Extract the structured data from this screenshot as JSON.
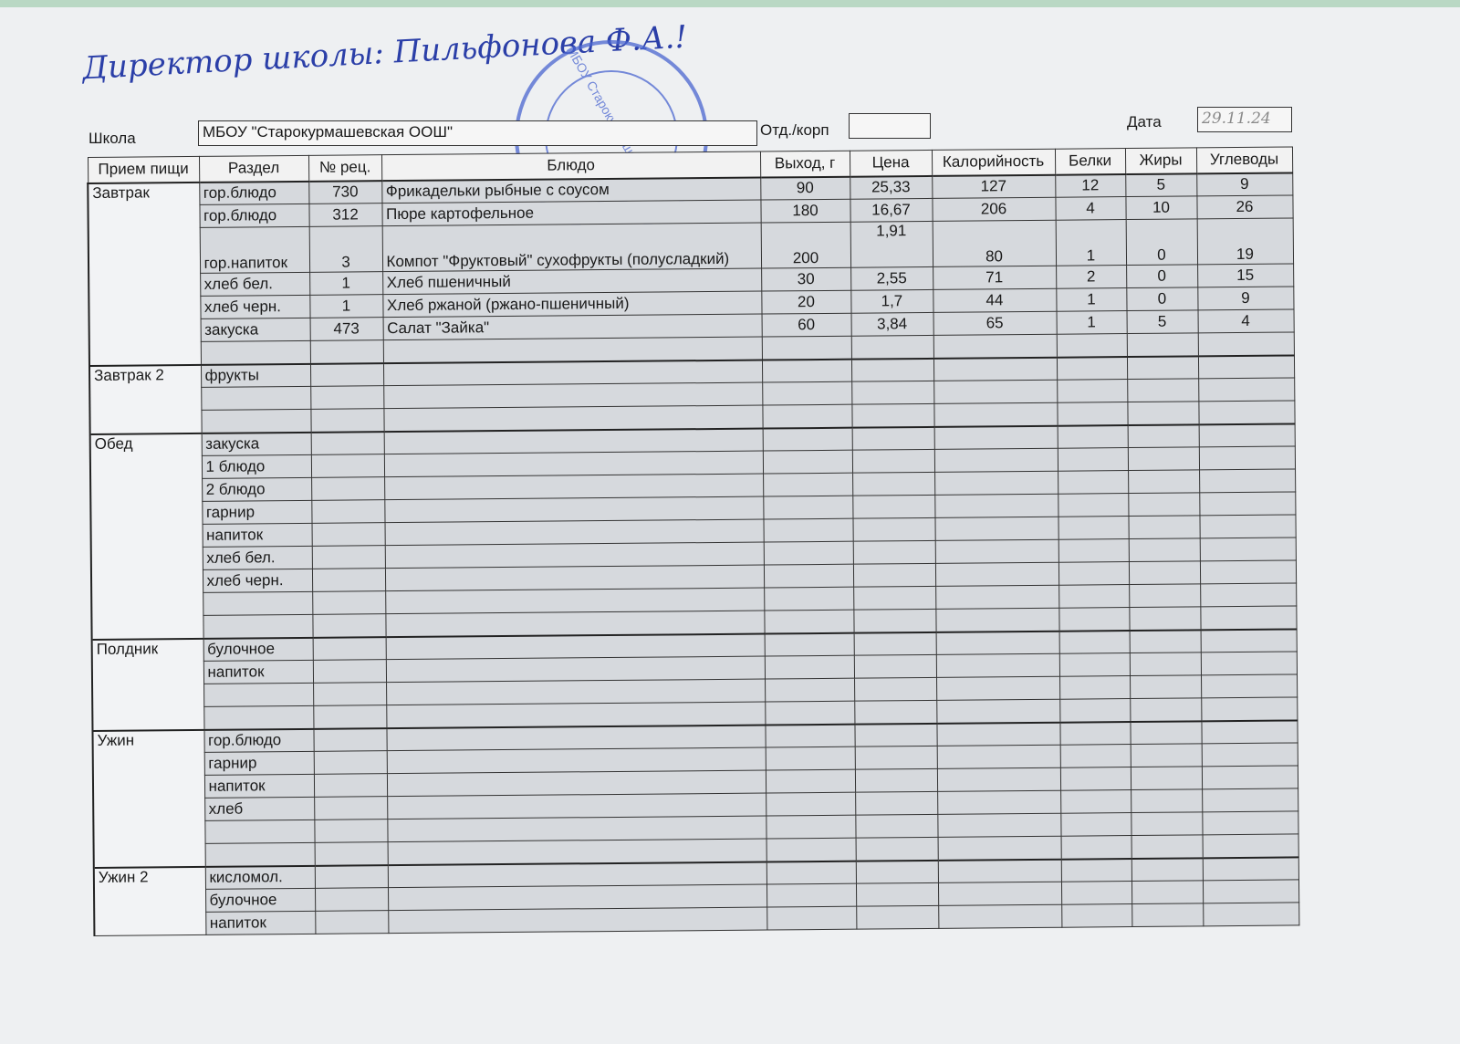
{
  "signature_line": {
    "text": "Директор школы: Пильфонова Ф.А.!",
    "stamp_text": "МБОУ Старокурмашевская ООШ",
    "ink_color": "#2b3fa8"
  },
  "header": {
    "school_label": "Школа",
    "school_value": "МБОУ \"Старокурмашевская ООШ\"",
    "branch_label": "Отд./корп",
    "branch_value": "",
    "date_label": "Дата",
    "date_value": "29.11.24"
  },
  "columns": [
    "Прием пищи",
    "Раздел",
    "№ рец.",
    "Блюдо",
    "Выход, г",
    "Цена",
    "Калорийность",
    "Белки",
    "Жиры",
    "Углеводы"
  ],
  "sections": [
    {
      "meal": "Завтрак",
      "rows": [
        [
          "гор.блюдо",
          "730",
          "Фрикадельки рыбные с соусом",
          "90",
          "25,33",
          "127",
          "12",
          "5",
          "9"
        ],
        [
          "гор.блюдо",
          "312",
          "Пюре картофельное",
          "180",
          "16,67",
          "206",
          "4",
          "10",
          "26"
        ],
        [
          "гор.напиток",
          "3",
          "Компот \"Фруктовый\" сухофрукты (полусладкий)",
          "200",
          "1,91",
          "80",
          "1",
          "0",
          "19"
        ],
        [
          "хлеб бел.",
          "1",
          "Хлеб пшеничный",
          "30",
          "2,55",
          "71",
          "2",
          "0",
          "15"
        ],
        [
          "хлеб черн.",
          "1",
          "Хлеб ржаной (ржано-пшеничный)",
          "20",
          "1,7",
          "44",
          "1",
          "0",
          "9"
        ],
        [
          "закуска",
          "473",
          "Салат \"Зайка\"",
          "60",
          "3,84",
          "65",
          "1",
          "5",
          "4"
        ],
        [
          "",
          "",
          "",
          "",
          "",
          "",
          "",
          "",
          ""
        ]
      ]
    },
    {
      "meal": "Завтрак 2",
      "rows": [
        [
          "фрукты",
          "",
          "",
          "",
          "",
          "",
          "",
          "",
          ""
        ],
        [
          "",
          "",
          "",
          "",
          "",
          "",
          "",
          "",
          ""
        ],
        [
          "",
          "",
          "",
          "",
          "",
          "",
          "",
          "",
          ""
        ]
      ]
    },
    {
      "meal": "Обед",
      "rows": [
        [
          "закуска",
          "",
          "",
          "",
          "",
          "",
          "",
          "",
          ""
        ],
        [
          "1 блюдо",
          "",
          "",
          "",
          "",
          "",
          "",
          "",
          ""
        ],
        [
          "2 блюдо",
          "",
          "",
          "",
          "",
          "",
          "",
          "",
          ""
        ],
        [
          "гарнир",
          "",
          "",
          "",
          "",
          "",
          "",
          "",
          ""
        ],
        [
          "напиток",
          "",
          "",
          "",
          "",
          "",
          "",
          "",
          ""
        ],
        [
          "хлеб бел.",
          "",
          "",
          "",
          "",
          "",
          "",
          "",
          ""
        ],
        [
          "хлеб черн.",
          "",
          "",
          "",
          "",
          "",
          "",
          "",
          ""
        ],
        [
          "",
          "",
          "",
          "",
          "",
          "",
          "",
          "",
          ""
        ],
        [
          "",
          "",
          "",
          "",
          "",
          "",
          "",
          "",
          ""
        ]
      ]
    },
    {
      "meal": "Полдник",
      "rows": [
        [
          "булочное",
          "",
          "",
          "",
          "",
          "",
          "",
          "",
          ""
        ],
        [
          "напиток",
          "",
          "",
          "",
          "",
          "",
          "",
          "",
          ""
        ],
        [
          "",
          "",
          "",
          "",
          "",
          "",
          "",
          "",
          ""
        ],
        [
          "",
          "",
          "",
          "",
          "",
          "",
          "",
          "",
          ""
        ]
      ]
    },
    {
      "meal": "Ужин",
      "rows": [
        [
          "гор.блюдо",
          "",
          "",
          "",
          "",
          "",
          "",
          "",
          ""
        ],
        [
          "гарнир",
          "",
          "",
          "",
          "",
          "",
          "",
          "",
          ""
        ],
        [
          "напиток",
          "",
          "",
          "",
          "",
          "",
          "",
          "",
          ""
        ],
        [
          "хлеб",
          "",
          "",
          "",
          "",
          "",
          "",
          "",
          ""
        ],
        [
          "",
          "",
          "",
          "",
          "",
          "",
          "",
          "",
          ""
        ],
        [
          "",
          "",
          "",
          "",
          "",
          "",
          "",
          "",
          ""
        ]
      ]
    },
    {
      "meal": "Ужин 2",
      "rows": [
        [
          "кисломол.",
          "",
          "",
          "",
          "",
          "",
          "",
          "",
          ""
        ],
        [
          "булочное",
          "",
          "",
          "",
          "",
          "",
          "",
          "",
          ""
        ],
        [
          "напиток",
          "",
          "",
          "",
          "",
          "",
          "",
          "",
          ""
        ]
      ]
    }
  ]
}
